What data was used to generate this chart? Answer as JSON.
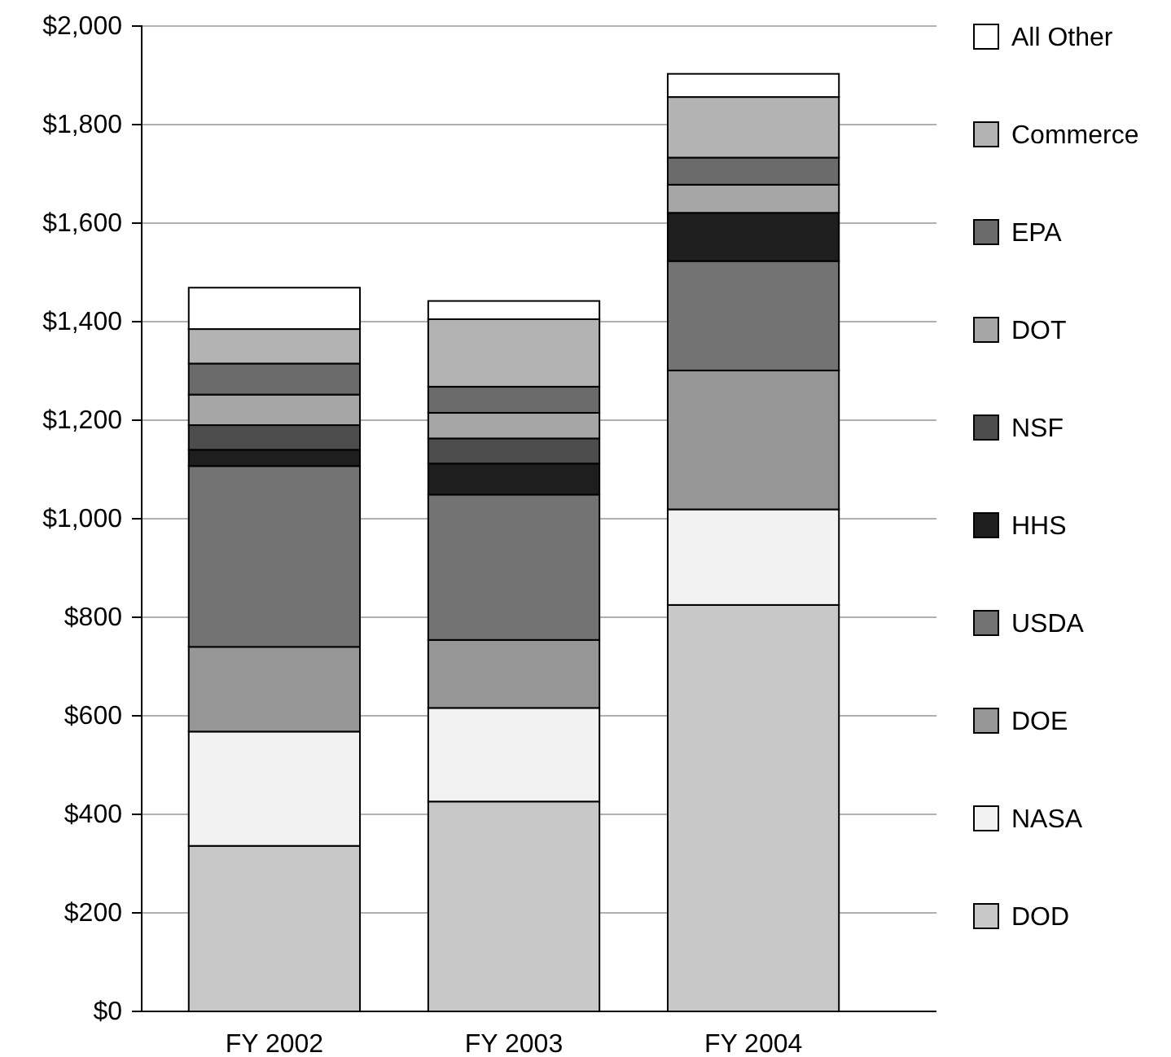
{
  "chart_data": {
    "type": "bar",
    "stacked": true,
    "categories": [
      "FY 2002",
      "FY 2003",
      "FY 2004"
    ],
    "series": [
      {
        "name": "DOD",
        "color": "#c8c8c8",
        "values": [
          336,
          426,
          825
        ]
      },
      {
        "name": "NASA",
        "color": "#f2f2f2",
        "values": [
          232,
          190,
          194
        ]
      },
      {
        "name": "DOE",
        "color": "#969696",
        "values": [
          172,
          138,
          282
        ]
      },
      {
        "name": "USDA",
        "color": "#737373",
        "values": [
          367,
          295,
          222
        ]
      },
      {
        "name": "HHS",
        "color": "#1e1e1e",
        "values": [
          33,
          63,
          98
        ]
      },
      {
        "name": "NSF",
        "color": "#4d4d4d",
        "values": [
          50,
          51,
          null
        ]
      },
      {
        "name": "DOT",
        "color": "#a6a6a6",
        "values": [
          62,
          52,
          57
        ]
      },
      {
        "name": "EPA",
        "color": "#6b6b6b",
        "values": [
          63,
          53,
          55
        ]
      },
      {
        "name": "Commerce",
        "color": "#b3b3b3",
        "values": [
          70,
          137,
          123
        ]
      },
      {
        "name": "All Other",
        "color": "#ffffff",
        "values": [
          84,
          37,
          47
        ]
      }
    ],
    "ylim": [
      0,
      2000
    ],
    "yticks": [
      {
        "value": 0,
        "label": "$0"
      },
      {
        "value": 200,
        "label": "$200"
      },
      {
        "value": 400,
        "label": "$400"
      },
      {
        "value": 600,
        "label": "$600"
      },
      {
        "value": 800,
        "label": "$800"
      },
      {
        "value": 1000,
        "label": "$1,000"
      },
      {
        "value": 1200,
        "label": "$1,200"
      },
      {
        "value": 1400,
        "label": "$1,400"
      },
      {
        "value": 1600,
        "label": "$1,600"
      },
      {
        "value": 1800,
        "label": "$1,800"
      },
      {
        "value": 2000,
        "label": "$2,000"
      }
    ],
    "grid": "y",
    "legend": "right"
  }
}
